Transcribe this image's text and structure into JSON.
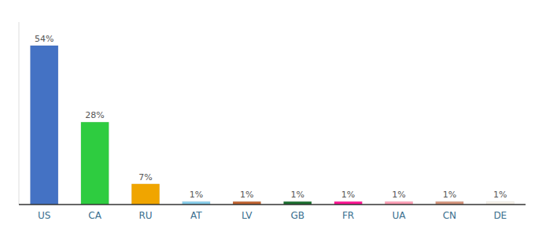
{
  "chart_data": {
    "type": "bar",
    "categories": [
      "US",
      "CA",
      "RU",
      "AT",
      "LV",
      "GB",
      "FR",
      "UA",
      "CN",
      "DE"
    ],
    "values": [
      54,
      28,
      7,
      1,
      1,
      1,
      1,
      1,
      1,
      1
    ],
    "value_labels": [
      "54%",
      "28%",
      "7%",
      "1%",
      "1%",
      "1%",
      "1%",
      "1%",
      "1%",
      "1%"
    ],
    "colors": [
      "#4472c4",
      "#2ecc40",
      "#f0a500",
      "#87ceeb",
      "#c0622e",
      "#1a6e2e",
      "#ff1493",
      "#ff9eb5",
      "#d4937a",
      "#f5f0e8"
    ],
    "ylim": [
      0,
      62
    ],
    "data_labels": true,
    "tick_labels": "x",
    "grid": false
  }
}
